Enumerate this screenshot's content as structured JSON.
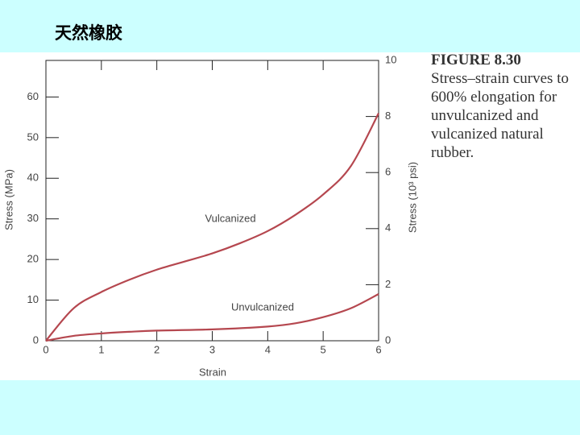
{
  "slide_title": "天然橡胶",
  "caption": {
    "figure": "FIGURE 8.30",
    "lines": [
      "Stress–strain curves to",
      "600% elongation for",
      "unvulcanized and",
      "vulcanized natural",
      "rubber."
    ]
  },
  "chart_data": {
    "type": "line",
    "xlabel": "Strain",
    "ylabel": "Stress (MPa)",
    "y2label": "Stress (10³ psi)",
    "xlim": [
      0,
      6
    ],
    "xticks": [
      0,
      1,
      2,
      3,
      4,
      5,
      6
    ],
    "ylim": [
      0,
      69
    ],
    "yticks": [
      0,
      10,
      20,
      30,
      40,
      50,
      60
    ],
    "y2lim": [
      0,
      10
    ],
    "y2ticks": [
      0,
      2,
      4,
      6,
      8,
      10
    ],
    "series": [
      {
        "name": "Vulcanized",
        "color": "#b5474f",
        "x": [
          0,
          0.5,
          1,
          1.5,
          2,
          2.5,
          3,
          3.5,
          4,
          4.5,
          5,
          5.5,
          6
        ],
        "values": [
          0,
          8,
          12,
          15,
          17.5,
          19.5,
          21.5,
          24,
          27,
          31,
          36,
          43,
          56
        ]
      },
      {
        "name": "Unvulcanized",
        "color": "#b5474f",
        "x": [
          0,
          0.5,
          1,
          1.5,
          2,
          3,
          4,
          4.5,
          5,
          5.5,
          6
        ],
        "values": [
          0,
          1.2,
          1.8,
          2.2,
          2.5,
          2.8,
          3.5,
          4.3,
          5.8,
          8,
          11.5
        ]
      }
    ]
  }
}
